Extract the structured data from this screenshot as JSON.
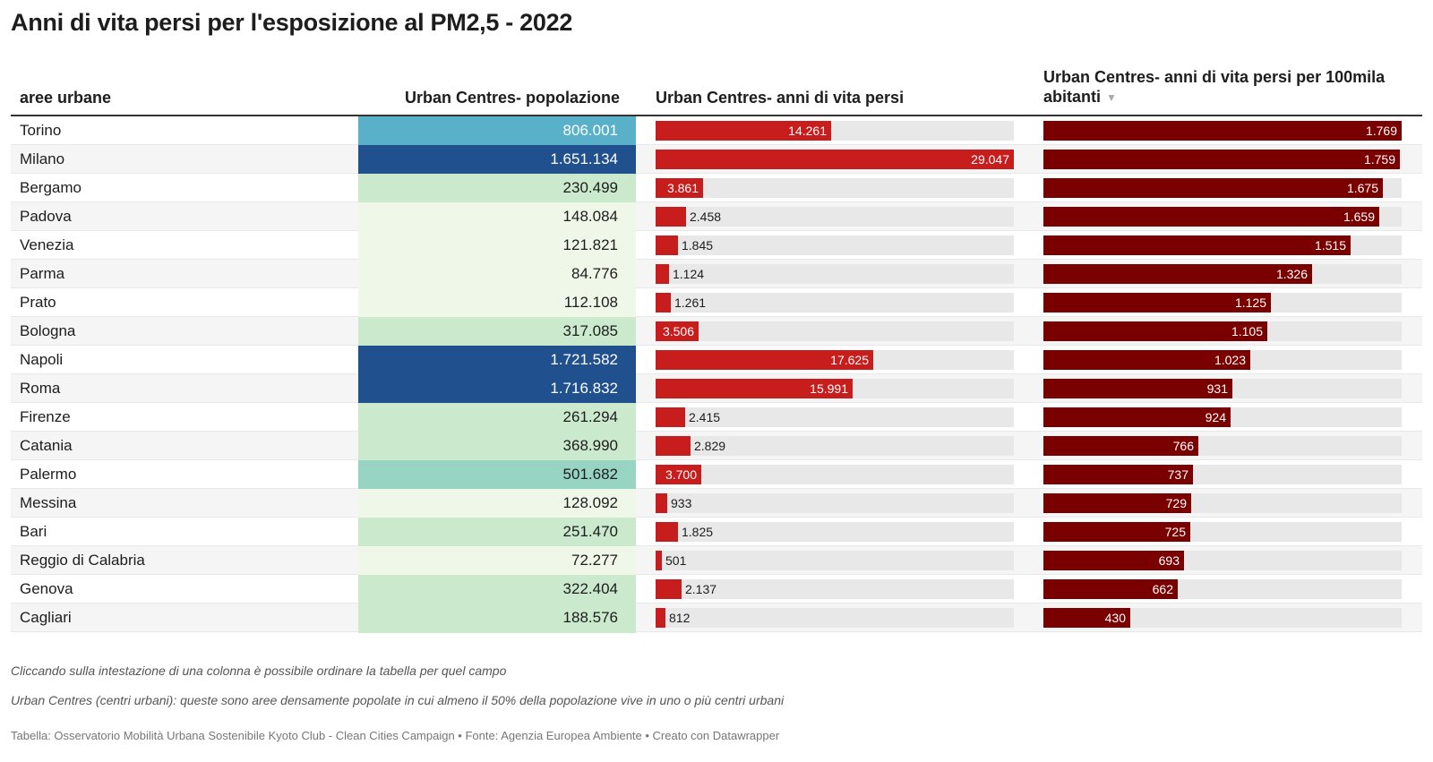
{
  "title": "Anni di vita persi per l'esposizione al PM2,5 - 2022",
  "columns": {
    "name": "aree urbane",
    "pop": "Urban Centres- popolazione",
    "years": "Urban Centres- anni di vita persi",
    "rate": "Urban Centres- anni di vita persi per 100mila abitanti",
    "sort_icon": "triangle-down-icon"
  },
  "notes": [
    "Cliccando sulla intestazione di una colonna è possibile ordinare la tabella per quel campo",
    "Urban Centres (centri urbani): queste sono aree densamente popolate in cui almeno il 50% della popolazione vive in uno o più centri urbani"
  ],
  "footer": "Tabella: Osservatorio Mobilità Urbana Sostenibile Kyoto Club - Clean Cities Campaign • Fonte: Agenzia Europea Ambiente • Creato con Datawrapper",
  "colors": {
    "years_bar": "#c71e1d",
    "rate_bar": "#7a0000",
    "track": "#e8e8e8",
    "pop_scale": [
      "#eef7e8",
      "#cbe9cd",
      "#97d4c1",
      "#58b0c9",
      "#21508f"
    ]
  },
  "chart_data": {
    "type": "table",
    "sorted_by": "rate",
    "sort_order": "descending",
    "max_years": 29047,
    "max_rate": 1769,
    "rows": [
      {
        "name": "Torino",
        "pop": "806.001",
        "pop_value": 806001,
        "years": "14.261",
        "years_value": 14261,
        "rate": "1.769",
        "rate_value": 1769
      },
      {
        "name": "Milano",
        "pop": "1.651.134",
        "pop_value": 1651134,
        "years": "29.047",
        "years_value": 29047,
        "rate": "1.759",
        "rate_value": 1759
      },
      {
        "name": "Bergamo",
        "pop": "230.499",
        "pop_value": 230499,
        "years": "3.861",
        "years_value": 3861,
        "rate": "1.675",
        "rate_value": 1675
      },
      {
        "name": "Padova",
        "pop": "148.084",
        "pop_value": 148084,
        "years": "2.458",
        "years_value": 2458,
        "rate": "1.659",
        "rate_value": 1659
      },
      {
        "name": "Venezia",
        "pop": "121.821",
        "pop_value": 121821,
        "years": "1.845",
        "years_value": 1845,
        "rate": "1.515",
        "rate_value": 1515
      },
      {
        "name": "Parma",
        "pop": "84.776",
        "pop_value": 84776,
        "years": "1.124",
        "years_value": 1124,
        "rate": "1.326",
        "rate_value": 1326
      },
      {
        "name": "Prato",
        "pop": "112.108",
        "pop_value": 112108,
        "years": "1.261",
        "years_value": 1261,
        "rate": "1.125",
        "rate_value": 1125
      },
      {
        "name": "Bologna",
        "pop": "317.085",
        "pop_value": 317085,
        "years": "3.506",
        "years_value": 3506,
        "rate": "1.105",
        "rate_value": 1105
      },
      {
        "name": "Napoli",
        "pop": "1.721.582",
        "pop_value": 1721582,
        "years": "17.625",
        "years_value": 17625,
        "rate": "1.023",
        "rate_value": 1023
      },
      {
        "name": "Roma",
        "pop": "1.716.832",
        "pop_value": 1716832,
        "years": "15.991",
        "years_value": 15991,
        "rate": "931",
        "rate_value": 931
      },
      {
        "name": "Firenze",
        "pop": "261.294",
        "pop_value": 261294,
        "years": "2.415",
        "years_value": 2415,
        "rate": "924",
        "rate_value": 924
      },
      {
        "name": "Catania",
        "pop": "368.990",
        "pop_value": 368990,
        "years": "2.829",
        "years_value": 2829,
        "rate": "766",
        "rate_value": 766
      },
      {
        "name": "Palermo",
        "pop": "501.682",
        "pop_value": 501682,
        "years": "3.700",
        "years_value": 3700,
        "rate": "737",
        "rate_value": 737
      },
      {
        "name": "Messina",
        "pop": "128.092",
        "pop_value": 128092,
        "years": "933",
        "years_value": 933,
        "rate": "729",
        "rate_value": 729
      },
      {
        "name": "Bari",
        "pop": "251.470",
        "pop_value": 251470,
        "years": "1.825",
        "years_value": 1825,
        "rate": "725",
        "rate_value": 725
      },
      {
        "name": "Reggio di Calabria",
        "pop": "72.277",
        "pop_value": 72277,
        "years": "501",
        "years_value": 501,
        "rate": "693",
        "rate_value": 693
      },
      {
        "name": "Genova",
        "pop": "322.404",
        "pop_value": 322404,
        "years": "2.137",
        "years_value": 2137,
        "rate": "662",
        "rate_value": 662
      },
      {
        "name": "Cagliari",
        "pop": "188.576",
        "pop_value": 188576,
        "years": "812",
        "years_value": 812,
        "rate": "430",
        "rate_value": 430
      }
    ]
  }
}
